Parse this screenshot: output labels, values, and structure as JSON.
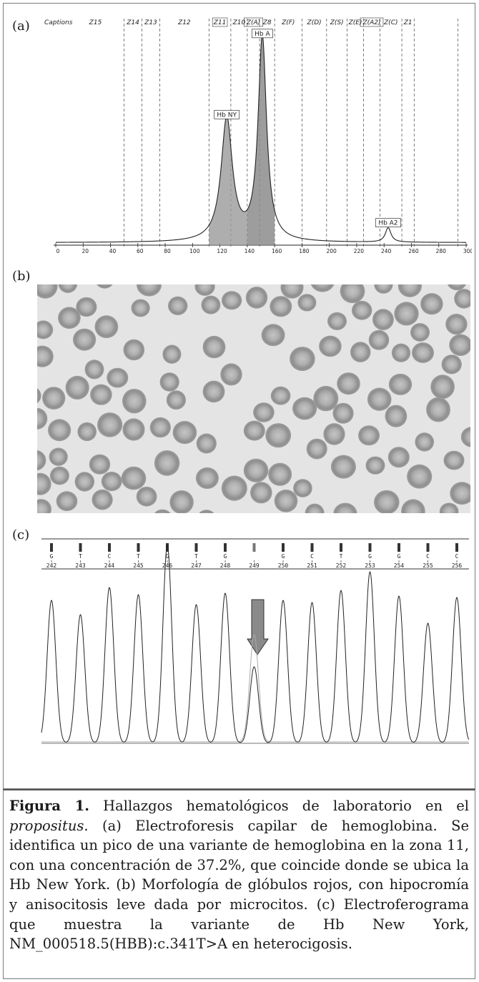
{
  "panel_a": {
    "letter": "(a)",
    "captions_label": "Captions",
    "zones": [
      "Z15",
      "Z14",
      "Z13",
      "Z12",
      "Z11",
      "Z10",
      "Z(A)",
      "Z8",
      "Z(F)",
      "Z(D)",
      "Z(S)",
      "Z(E)",
      "Z(A2)",
      "Z(C)",
      "Z1"
    ],
    "peak_labels": [
      "Hb NY",
      "Hb A",
      "Hb A2"
    ],
    "x_ticks": [
      "0",
      "20",
      "40",
      "60",
      "80",
      "100",
      "120",
      "140",
      "160",
      "180",
      "200",
      "220",
      "240",
      "260",
      "280",
      "300"
    ]
  },
  "panel_b": {
    "letter": "(b)"
  },
  "panel_c": {
    "letter": "(c)",
    "bases": [
      "G",
      "T",
      "C",
      "T",
      "G",
      "T",
      "G",
      "",
      "G",
      "C",
      "T",
      "G",
      "G",
      "C",
      "C"
    ],
    "positions": [
      "242",
      "243",
      "244",
      "245",
      "246",
      "247",
      "248",
      "249",
      "250",
      "251",
      "252",
      "253",
      "254",
      "255",
      "256"
    ]
  },
  "caption": {
    "label": "Figura 1.",
    "part1": " Hallazgos hematológicos de laboratorio en el ",
    "propositus": "propositus",
    "part2": ". (a) Electroforesis capilar de hemoglobina. Se identifica un pico de una variante de hemoglobina en la zona 11, con una concentración de 37.2%, que coincide donde se ubica la Hb New York. (b) Morfología de glóbulos rojos, con hipocromía y anisocitosis leve dada por microcitos. (c) Electroferograma que muestra la variante de Hb New York, NM_000518.5(HBB):c.341T>A en heterocigosis."
  },
  "colors": {
    "trace": "#222222",
    "peak_fill": "#8c8c8c",
    "blood_bg": "#e6e6e6",
    "cell": "#9a9a9a",
    "arrow": "#8a8a8a"
  },
  "chart_data": {
    "type": "line",
    "title": "",
    "xlabel": "",
    "ylabel": "",
    "xlim": [
      0,
      300
    ],
    "x_ticks": [
      0,
      20,
      40,
      60,
      80,
      100,
      120,
      140,
      160,
      180,
      200,
      220,
      240,
      260,
      280,
      300
    ],
    "zone_boundaries": [
      50,
      63,
      76,
      112,
      128,
      140,
      149,
      160,
      180,
      198,
      213,
      225,
      237,
      253,
      262,
      294
    ],
    "peaks": [
      {
        "label": "Hb NY",
        "x": 125,
        "height": 0.59,
        "concentration_percent": 37.2
      },
      {
        "label": "Hb A",
        "x": 151,
        "height": 0.98
      },
      {
        "label": "Hb A2",
        "x": 243,
        "height": 0.07
      }
    ]
  }
}
